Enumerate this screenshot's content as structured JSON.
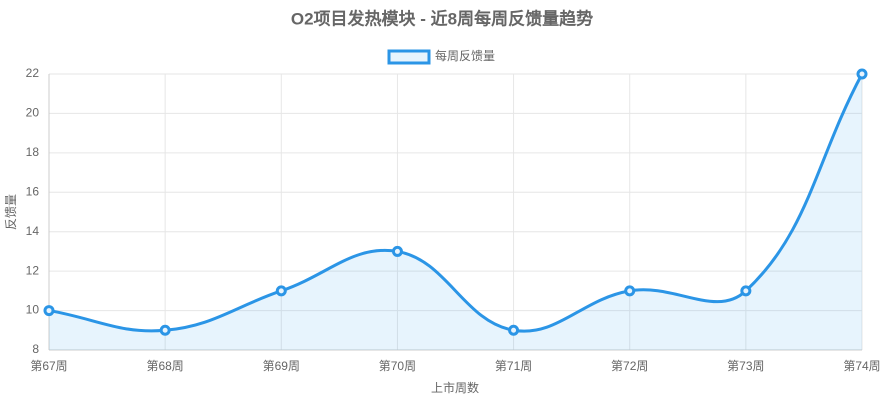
{
  "chart_data": {
    "type": "line",
    "title": "O2项目发热模块 - 近8周每周反馈量趋势",
    "x_label": "上市周数",
    "y_label": "反馈量",
    "categories": [
      "第67周",
      "第68周",
      "第69周",
      "第70周",
      "第71周",
      "第72周",
      "第73周",
      "第74周"
    ],
    "series": [
      {
        "name": "每周反馈量",
        "color": "#2b95e6",
        "fill": "rgba(54,162,235,0.12)",
        "values": [
          10,
          9,
          11,
          13,
          9,
          11,
          11,
          22
        ]
      }
    ],
    "ylim": [
      8,
      22
    ],
    "yticks": [
      8,
      10,
      12,
      14,
      16,
      18,
      20,
      22
    ],
    "grid": true,
    "legend": "top",
    "smooth": true
  }
}
